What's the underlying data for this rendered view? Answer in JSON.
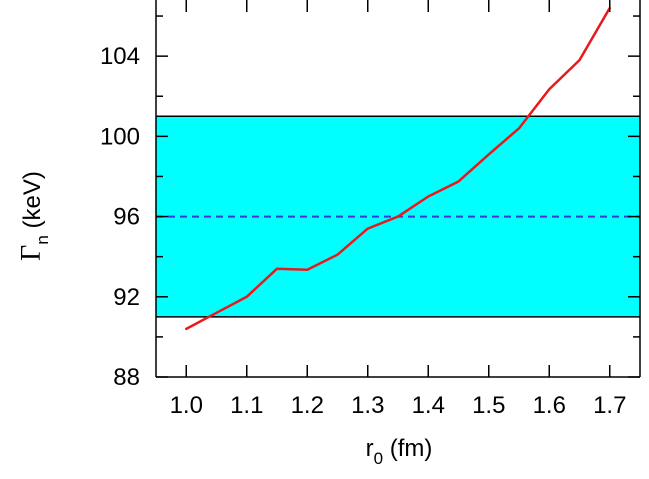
{
  "chart_data": {
    "type": "line",
    "title": "",
    "xlabel": {
      "main": "r",
      "sub": "0",
      "unit": " (fm)"
    },
    "ylabel": {
      "main": "Γ",
      "sub": "n",
      "unit": " (keV)"
    },
    "xlim": [
      0.95,
      1.75
    ],
    "ylim": [
      88,
      106.8
    ],
    "x_ticks": [
      1.0,
      1.1,
      1.2,
      1.3,
      1.4,
      1.5,
      1.6,
      1.7
    ],
    "x_tick_labels": [
      "1.0",
      "1.1",
      "1.2",
      "1.3",
      "1.4",
      "1.5",
      "1.6",
      "1.7"
    ],
    "y_ticks": [
      88,
      92,
      96,
      100,
      104
    ],
    "y_tick_labels": [
      "88",
      "92",
      "96",
      "100",
      "104"
    ],
    "y_minor_tick_step": 2,
    "grid": false,
    "band": {
      "lower": 91,
      "upper": 101,
      "color": "#00ffff"
    },
    "reference_line": {
      "y": 96,
      "color": "#3a3ad6",
      "style": "dashed"
    },
    "series": [
      {
        "color": "#e8191b",
        "x": [
          1.0,
          1.05,
          1.1,
          1.15,
          1.2,
          1.25,
          1.3,
          1.35,
          1.4,
          1.45,
          1.5,
          1.55,
          1.6,
          1.65,
          1.7
        ],
        "y": [
          90.4,
          91.2,
          92.0,
          93.4,
          93.35,
          94.1,
          95.4,
          96.0,
          97.0,
          97.75,
          99.1,
          100.4,
          102.35,
          103.8,
          106.4
        ]
      }
    ]
  }
}
